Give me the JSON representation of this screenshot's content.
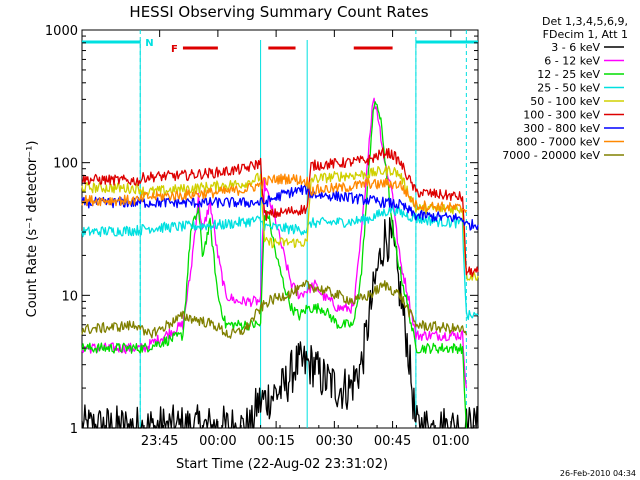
{
  "chart_data": {
    "type": "line",
    "title": "HESSI Observing Summary Count Rates",
    "xlabel": "Start Time (22-Aug-02 23:31:02)",
    "ylabel": "Count Rate (s⁻¹ detector⁻¹)",
    "yscale": "log",
    "ylim": [
      1,
      1000
    ],
    "xlim_minutes": [
      -6,
      96
    ],
    "x_ticks": [
      {
        "minute": 14,
        "label": "23:45"
      },
      {
        "minute": 29,
        "label": "00:00"
      },
      {
        "minute": 44,
        "label": "00:15"
      },
      {
        "minute": 59,
        "label": "00:30"
      },
      {
        "minute": 74,
        "label": "00:45"
      },
      {
        "minute": 89,
        "label": "01:00"
      }
    ],
    "y_ticks": [
      {
        "value": 1,
        "label": "1"
      },
      {
        "value": 10,
        "label": "10"
      },
      {
        "value": 100,
        "label": "100"
      },
      {
        "value": 1000,
        "label": "1000"
      }
    ],
    "legend": {
      "position": "right",
      "header": [
        "Det 1,3,4,5,6,9,",
        "FDecim 1, Att 1"
      ],
      "entries": [
        {
          "label": "3 - 6 keV",
          "color": "#000000"
        },
        {
          "label": "6 - 12 keV",
          "color": "#ff00ff"
        },
        {
          "label": "12 - 25 keV",
          "color": "#00dd00"
        },
        {
          "label": "25 - 50 keV",
          "color": "#00e0e0"
        },
        {
          "label": "50 - 100 keV",
          "color": "#d0d000"
        },
        {
          "label": "100 - 300 keV",
          "color": "#dd0000"
        },
        {
          "label": "300 - 800 keV",
          "color": "#0000ff"
        },
        {
          "label": "800 - 7000 keV",
          "color": "#ff8800"
        },
        {
          "label": "7000 - 20000 keV",
          "color": "#808000"
        }
      ]
    },
    "flags": {
      "N_label": "N",
      "F_label": "F",
      "night_color": "#00e0e0",
      "flare_color": "#dd0000",
      "night_intervals": [
        [
          -6,
          9
        ],
        [
          80,
          96
        ]
      ],
      "flare_intervals": [
        [
          20,
          29
        ],
        [
          42,
          49
        ],
        [
          64,
          74
        ]
      ],
      "data_gaps": [
        [
          9,
          10
        ],
        [
          40,
          41
        ],
        [
          52,
          53
        ],
        [
          80,
          81
        ]
      ],
      "saa_markers": [
        9,
        80,
        93
      ]
    },
    "series": [
      {
        "name": "3 - 6 keV",
        "color": "#000000",
        "points": [
          [
            -6,
            1
          ],
          [
            38,
            1
          ],
          [
            39,
            1.5
          ],
          [
            46,
            2
          ],
          [
            49,
            3
          ],
          [
            50,
            3
          ],
          [
            54,
            3
          ],
          [
            55,
            2.5
          ],
          [
            60,
            2
          ],
          [
            63,
            2
          ],
          [
            66,
            3
          ],
          [
            68,
            7
          ],
          [
            70,
            15
          ],
          [
            72,
            28
          ],
          [
            74,
            25
          ],
          [
            76,
            10
          ],
          [
            78,
            4
          ],
          [
            80,
            1
          ],
          [
            96,
            1
          ]
        ]
      },
      {
        "name": "6 - 12 keV",
        "color": "#ff00ff",
        "points": [
          [
            -6,
            4
          ],
          [
            8,
            4
          ],
          [
            10,
            4
          ],
          [
            20,
            6
          ],
          [
            22,
            15
          ],
          [
            24,
            55
          ],
          [
            25,
            30
          ],
          [
            27,
            50
          ],
          [
            29,
            20
          ],
          [
            31,
            10
          ],
          [
            34,
            9
          ],
          [
            37,
            9
          ],
          [
            40,
            9
          ],
          [
            41,
            70
          ],
          [
            42,
            55
          ],
          [
            44,
            35
          ],
          [
            46,
            20
          ],
          [
            48,
            12
          ],
          [
            50,
            10
          ],
          [
            52,
            11
          ],
          [
            54,
            12
          ],
          [
            56,
            10
          ],
          [
            58,
            9
          ],
          [
            60,
            8
          ],
          [
            64,
            8
          ],
          [
            66,
            30
          ],
          [
            68,
            150
          ],
          [
            69,
            300
          ],
          [
            70,
            250
          ],
          [
            71,
            160
          ],
          [
            72,
            100
          ],
          [
            74,
            60
          ],
          [
            75,
            30
          ],
          [
            76,
            18
          ],
          [
            78,
            10
          ],
          [
            80,
            5
          ],
          [
            92,
            5
          ],
          [
            93,
            2
          ]
        ]
      },
      {
        "name": "12 - 25 keV",
        "color": "#00dd00",
        "points": [
          [
            -6,
            4
          ],
          [
            9,
            4
          ],
          [
            10,
            4
          ],
          [
            20,
            5
          ],
          [
            22,
            30
          ],
          [
            24,
            45
          ],
          [
            25,
            20
          ],
          [
            27,
            35
          ],
          [
            29,
            10
          ],
          [
            31,
            6
          ],
          [
            38,
            6
          ],
          [
            40,
            6
          ],
          [
            41,
            40
          ],
          [
            42,
            40
          ],
          [
            44,
            20
          ],
          [
            46,
            12
          ],
          [
            48,
            8
          ],
          [
            50,
            7
          ],
          [
            52,
            8
          ],
          [
            56,
            8
          ],
          [
            60,
            6
          ],
          [
            64,
            6
          ],
          [
            66,
            15
          ],
          [
            68,
            100
          ],
          [
            69,
            250
          ],
          [
            70,
            280
          ],
          [
            71,
            200
          ],
          [
            72,
            110
          ],
          [
            73,
            60
          ],
          [
            74,
            30
          ],
          [
            76,
            15
          ],
          [
            78,
            8
          ],
          [
            80,
            4
          ],
          [
            92,
            4
          ],
          [
            93,
            1
          ]
        ]
      },
      {
        "name": "25 - 50 keV",
        "color": "#00e0e0",
        "points": [
          [
            -6,
            30
          ],
          [
            9,
            31
          ],
          [
            10,
            32
          ],
          [
            20,
            33
          ],
          [
            30,
            34
          ],
          [
            40,
            37
          ],
          [
            41,
            33
          ],
          [
            46,
            32
          ],
          [
            52,
            31
          ],
          [
            53,
            35
          ],
          [
            64,
            36
          ],
          [
            68,
            38
          ],
          [
            70,
            40
          ],
          [
            74,
            45
          ],
          [
            76,
            42
          ],
          [
            80,
            38
          ],
          [
            86,
            36
          ],
          [
            92,
            35
          ],
          [
            93,
            7
          ],
          [
            96,
            7
          ]
        ]
      },
      {
        "name": "50 - 100 keV",
        "color": "#d0d000",
        "points": [
          [
            -6,
            65
          ],
          [
            9,
            64
          ],
          [
            10,
            60
          ],
          [
            20,
            63
          ],
          [
            30,
            67
          ],
          [
            36,
            70
          ],
          [
            40,
            78
          ],
          [
            41,
            25
          ],
          [
            52,
            25
          ],
          [
            53,
            75
          ],
          [
            62,
            80
          ],
          [
            68,
            82
          ],
          [
            70,
            85
          ],
          [
            74,
            88
          ],
          [
            76,
            80
          ],
          [
            80,
            45
          ],
          [
            92,
            45
          ],
          [
            93,
            14
          ],
          [
            96,
            14
          ]
        ]
      },
      {
        "name": "100 - 300 keV",
        "color": "#dd0000",
        "points": [
          [
            -6,
            75
          ],
          [
            9,
            73
          ],
          [
            10,
            78
          ],
          [
            20,
            80
          ],
          [
            30,
            85
          ],
          [
            36,
            90
          ],
          [
            40,
            100
          ],
          [
            41,
            40
          ],
          [
            52,
            45
          ],
          [
            53,
            95
          ],
          [
            62,
            100
          ],
          [
            68,
            105
          ],
          [
            72,
            120
          ],
          [
            74,
            115
          ],
          [
            76,
            100
          ],
          [
            80,
            60
          ],
          [
            92,
            55
          ],
          [
            93,
            15
          ],
          [
            96,
            15
          ]
        ]
      },
      {
        "name": "300 - 800 keV",
        "color": "#0000ff",
        "points": [
          [
            -6,
            50
          ],
          [
            9,
            50
          ],
          [
            41,
            50
          ],
          [
            46,
            58
          ],
          [
            50,
            62
          ],
          [
            52,
            63
          ],
          [
            53,
            58
          ],
          [
            62,
            55
          ],
          [
            68,
            52
          ],
          [
            72,
            50
          ],
          [
            76,
            48
          ],
          [
            80,
            40
          ],
          [
            92,
            38
          ],
          [
            93,
            34
          ],
          [
            96,
            34
          ]
        ]
      },
      {
        "name": "800 - 7000 keV",
        "color": "#ff8800",
        "points": [
          [
            -6,
            52
          ],
          [
            9,
            52
          ],
          [
            10,
            55
          ],
          [
            20,
            57
          ],
          [
            30,
            60
          ],
          [
            36,
            63
          ],
          [
            40,
            68
          ],
          [
            41,
            72
          ],
          [
            44,
            75
          ],
          [
            48,
            76
          ],
          [
            52,
            72
          ],
          [
            53,
            62
          ],
          [
            62,
            65
          ],
          [
            68,
            70
          ],
          [
            70,
            68
          ],
          [
            72,
            70
          ],
          [
            76,
            68
          ],
          [
            80,
            48
          ],
          [
            92,
            45
          ],
          [
            93,
            44
          ]
        ]
      },
      {
        "name": "7000 - 20000 keV",
        "color": "#808000",
        "points": [
          [
            -6,
            5.5
          ],
          [
            9,
            6
          ],
          [
            10,
            5
          ],
          [
            14,
            5.5
          ],
          [
            16,
            6
          ],
          [
            20,
            7
          ],
          [
            24,
            6.5
          ],
          [
            28,
            6
          ],
          [
            32,
            5
          ],
          [
            36,
            5.5
          ],
          [
            40,
            8
          ],
          [
            42,
            9
          ],
          [
            46,
            10
          ],
          [
            50,
            11
          ],
          [
            52,
            12
          ],
          [
            56,
            11
          ],
          [
            60,
            10
          ],
          [
            64,
            9
          ],
          [
            68,
            10
          ],
          [
            70,
            11
          ],
          [
            72,
            12
          ],
          [
            74,
            11
          ],
          [
            76,
            10
          ],
          [
            80,
            6
          ],
          [
            92,
            5.5
          ],
          [
            93,
            5
          ]
        ]
      }
    ]
  },
  "footer": {
    "timestamp": "26-Feb-2010 04:34"
  }
}
